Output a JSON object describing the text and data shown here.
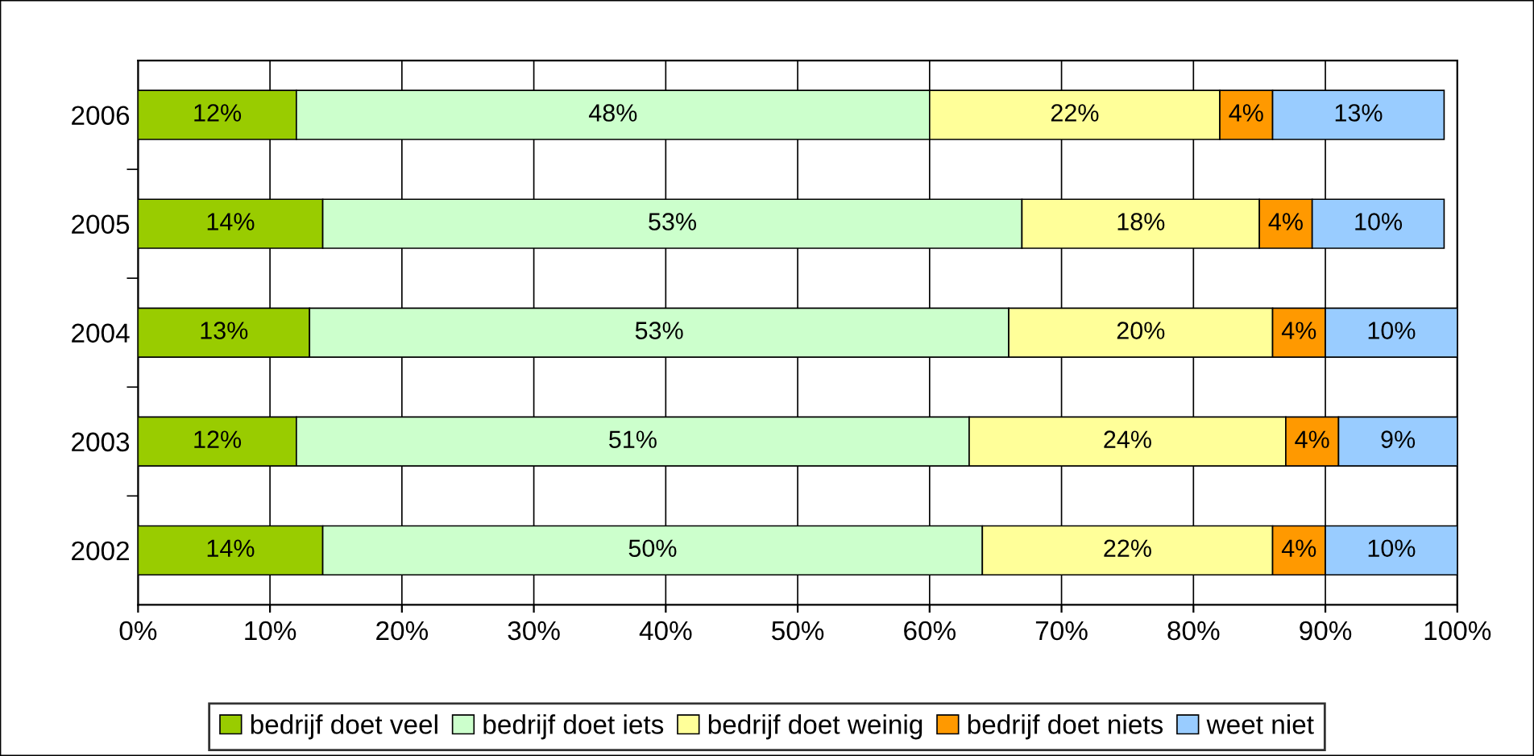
{
  "chart_data": {
    "type": "bar",
    "orientation": "horizontal",
    "stacked": true,
    "categories": [
      "2006",
      "2005",
      "2004",
      "2003",
      "2002"
    ],
    "series": [
      {
        "name": "bedrijf doet veel",
        "color": "#99cc00",
        "values": [
          12,
          14,
          13,
          12,
          14
        ],
        "value_labels": [
          "12%",
          "14%",
          "13%",
          "12%",
          "14%"
        ]
      },
      {
        "name": "bedrijf doet iets",
        "color": "#ccffcc",
        "values": [
          48,
          53,
          53,
          51,
          50
        ],
        "value_labels": [
          "48%",
          "53%",
          "53%",
          "51%",
          "50%"
        ]
      },
      {
        "name": "bedrijf doet weinig",
        "color": "#ffff99",
        "values": [
          22,
          18,
          20,
          24,
          22
        ],
        "value_labels": [
          "22%",
          "18%",
          "20%",
          "24%",
          "22%"
        ]
      },
      {
        "name": "bedrijf doet niets",
        "color": "#ff9900",
        "values": [
          4,
          4,
          4,
          4,
          4
        ],
        "value_labels": [
          "4%",
          "4%",
          "4%",
          "4%",
          "4%"
        ]
      },
      {
        "name": "weet niet",
        "color": "#99ccff",
        "values": [
          13,
          10,
          10,
          9,
          10
        ],
        "value_labels": [
          "13%",
          "10%",
          "10%",
          "9%",
          "10%"
        ]
      }
    ],
    "xlim": [
      0,
      100
    ],
    "xticks": [
      {
        "value": 0,
        "label": "0%"
      },
      {
        "value": 10,
        "label": "10%"
      },
      {
        "value": 20,
        "label": "20%"
      },
      {
        "value": 30,
        "label": "30%"
      },
      {
        "value": 40,
        "label": "40%"
      },
      {
        "value": 50,
        "label": "50%"
      },
      {
        "value": 60,
        "label": "60%"
      },
      {
        "value": 70,
        "label": "70%"
      },
      {
        "value": 80,
        "label": "80%"
      },
      {
        "value": 90,
        "label": "90%"
      },
      {
        "value": 100,
        "label": "100%"
      }
    ],
    "grid": "x",
    "legend": "bottom"
  }
}
